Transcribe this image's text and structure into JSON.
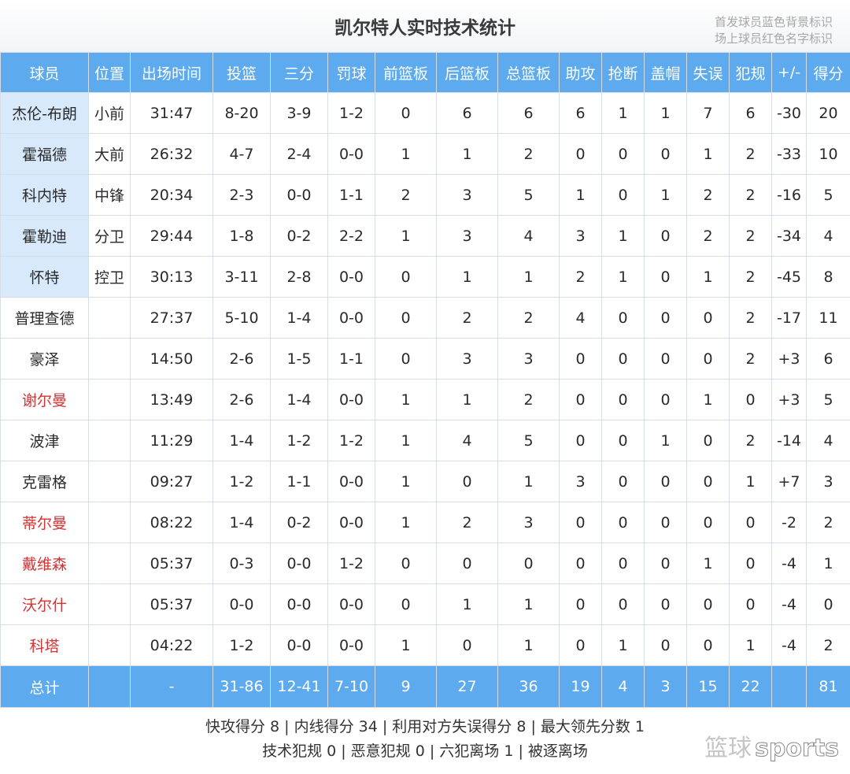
{
  "title": "凯尔特人实时技术统计",
  "legend_note": {
    "line1": "首发球员蓝色背景标识",
    "line2": "场上球员红色名字标识"
  },
  "columns": [
    "球员",
    "位置",
    "出场时间",
    "投篮",
    "三分",
    "罚球",
    "前篮板",
    "后篮板",
    "总篮板",
    "助攻",
    "抢断",
    "盖帽",
    "失误",
    "犯规",
    "+/-",
    "得分"
  ],
  "players": [
    {
      "name": "杰伦-布朗",
      "pos": "小前",
      "min": "31:47",
      "fg": "8-20",
      "tp": "3-9",
      "ft": "1-2",
      "oreb": "0",
      "dreb": "6",
      "reb": "6",
      "ast": "6",
      "stl": "1",
      "blk": "1",
      "tov": "7",
      "pf": "6",
      "pm": "-30",
      "pts": "20",
      "starter": true,
      "on_court": false
    },
    {
      "name": "霍福德",
      "pos": "大前",
      "min": "26:32",
      "fg": "4-7",
      "tp": "2-4",
      "ft": "0-0",
      "oreb": "1",
      "dreb": "1",
      "reb": "2",
      "ast": "0",
      "stl": "0",
      "blk": "0",
      "tov": "1",
      "pf": "2",
      "pm": "-33",
      "pts": "10",
      "starter": true,
      "on_court": false
    },
    {
      "name": "科内特",
      "pos": "中锋",
      "min": "20:34",
      "fg": "2-3",
      "tp": "0-0",
      "ft": "1-1",
      "oreb": "2",
      "dreb": "3",
      "reb": "5",
      "ast": "1",
      "stl": "0",
      "blk": "1",
      "tov": "2",
      "pf": "2",
      "pm": "-16",
      "pts": "5",
      "starter": true,
      "on_court": false
    },
    {
      "name": "霍勒迪",
      "pos": "分卫",
      "min": "29:44",
      "fg": "1-8",
      "tp": "0-2",
      "ft": "2-2",
      "oreb": "1",
      "dreb": "3",
      "reb": "4",
      "ast": "3",
      "stl": "1",
      "blk": "0",
      "tov": "2",
      "pf": "2",
      "pm": "-34",
      "pts": "4",
      "starter": true,
      "on_court": false
    },
    {
      "name": "怀特",
      "pos": "控卫",
      "min": "30:13",
      "fg": "3-11",
      "tp": "2-8",
      "ft": "0-0",
      "oreb": "0",
      "dreb": "1",
      "reb": "1",
      "ast": "2",
      "stl": "1",
      "blk": "0",
      "tov": "1",
      "pf": "2",
      "pm": "-45",
      "pts": "8",
      "starter": true,
      "on_court": false
    },
    {
      "name": "普理查德",
      "pos": "",
      "min": "27:37",
      "fg": "5-10",
      "tp": "1-4",
      "ft": "0-0",
      "oreb": "0",
      "dreb": "2",
      "reb": "2",
      "ast": "4",
      "stl": "0",
      "blk": "0",
      "tov": "0",
      "pf": "2",
      "pm": "-17",
      "pts": "11",
      "starter": false,
      "on_court": false
    },
    {
      "name": "豪泽",
      "pos": "",
      "min": "14:50",
      "fg": "2-6",
      "tp": "1-5",
      "ft": "1-1",
      "oreb": "0",
      "dreb": "3",
      "reb": "3",
      "ast": "0",
      "stl": "0",
      "blk": "0",
      "tov": "0",
      "pf": "2",
      "pm": "+3",
      "pts": "6",
      "starter": false,
      "on_court": false
    },
    {
      "name": "谢尔曼",
      "pos": "",
      "min": "13:49",
      "fg": "2-6",
      "tp": "1-4",
      "ft": "0-0",
      "oreb": "1",
      "dreb": "1",
      "reb": "2",
      "ast": "0",
      "stl": "0",
      "blk": "0",
      "tov": "1",
      "pf": "0",
      "pm": "+3",
      "pts": "5",
      "starter": false,
      "on_court": true
    },
    {
      "name": "波津",
      "pos": "",
      "min": "11:29",
      "fg": "1-4",
      "tp": "1-2",
      "ft": "1-2",
      "oreb": "1",
      "dreb": "4",
      "reb": "5",
      "ast": "0",
      "stl": "0",
      "blk": "1",
      "tov": "0",
      "pf": "2",
      "pm": "-14",
      "pts": "4",
      "starter": false,
      "on_court": false
    },
    {
      "name": "克雷格",
      "pos": "",
      "min": "09:27",
      "fg": "1-2",
      "tp": "1-1",
      "ft": "0-0",
      "oreb": "1",
      "dreb": "0",
      "reb": "1",
      "ast": "3",
      "stl": "0",
      "blk": "0",
      "tov": "0",
      "pf": "1",
      "pm": "+7",
      "pts": "3",
      "starter": false,
      "on_court": false
    },
    {
      "name": "蒂尔曼",
      "pos": "",
      "min": "08:22",
      "fg": "1-4",
      "tp": "0-2",
      "ft": "0-0",
      "oreb": "1",
      "dreb": "2",
      "reb": "3",
      "ast": "0",
      "stl": "0",
      "blk": "0",
      "tov": "0",
      "pf": "0",
      "pm": "-2",
      "pts": "2",
      "starter": false,
      "on_court": true
    },
    {
      "name": "戴维森",
      "pos": "",
      "min": "05:37",
      "fg": "0-3",
      "tp": "0-0",
      "ft": "1-2",
      "oreb": "0",
      "dreb": "0",
      "reb": "0",
      "ast": "0",
      "stl": "0",
      "blk": "0",
      "tov": "1",
      "pf": "0",
      "pm": "-4",
      "pts": "1",
      "starter": false,
      "on_court": true
    },
    {
      "name": "沃尔什",
      "pos": "",
      "min": "05:37",
      "fg": "0-0",
      "tp": "0-0",
      "ft": "0-0",
      "oreb": "0",
      "dreb": "1",
      "reb": "1",
      "ast": "0",
      "stl": "0",
      "blk": "0",
      "tov": "0",
      "pf": "0",
      "pm": "-4",
      "pts": "0",
      "starter": false,
      "on_court": true
    },
    {
      "name": "科塔",
      "pos": "",
      "min": "04:22",
      "fg": "1-2",
      "tp": "0-0",
      "ft": "0-0",
      "oreb": "1",
      "dreb": "0",
      "reb": "1",
      "ast": "0",
      "stl": "1",
      "blk": "0",
      "tov": "0",
      "pf": "1",
      "pm": "-4",
      "pts": "2",
      "starter": false,
      "on_court": true
    }
  ],
  "totals": {
    "name": "总计",
    "pos": "",
    "min": "-",
    "fg": "31-86",
    "tp": "12-41",
    "ft": "7-10",
    "oreb": "9",
    "dreb": "27",
    "reb": "36",
    "ast": "19",
    "stl": "4",
    "blk": "3",
    "tov": "15",
    "pf": "22",
    "pm": "",
    "pts": "81"
  },
  "footer": {
    "line1": "快攻得分 8 | 内线得分 34 | 利用对方失误得分 8 | 最大领先分数 1",
    "line2": "技术犯规 0 | 恶意犯规 0 | 六犯离场 1 | 被逐离场"
  },
  "watermark": {
    "cn": "篮球",
    "en": "sports"
  },
  "colors": {
    "header_bg": "#5eaaee",
    "starter_bg": "#d8e9fb",
    "oncourt_text": "#d43333"
  }
}
